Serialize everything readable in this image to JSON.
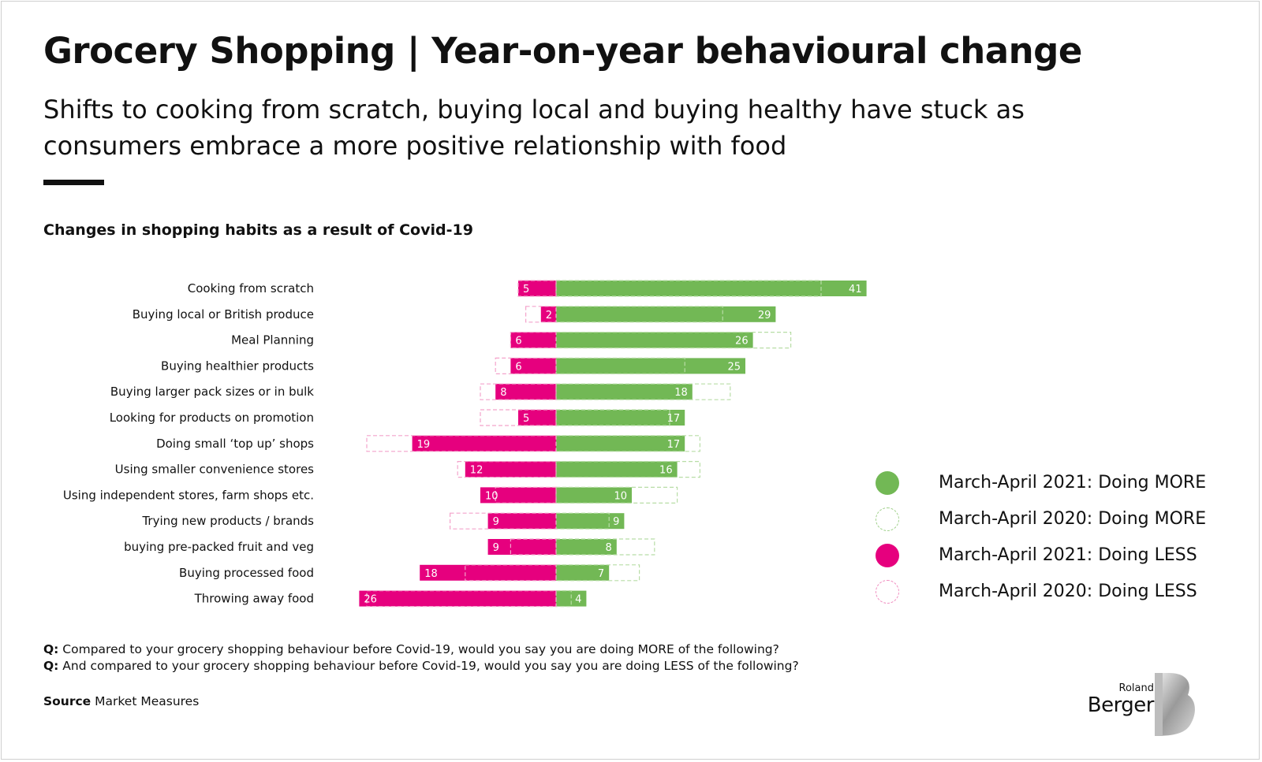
{
  "header": {
    "title": "Grocery Shopping | Year-on-year behavioural change",
    "subtitle": "Shifts to cooking from scratch, buying local and buying healthy have stuck as consumers embrace a more positive relationship with food"
  },
  "chart_data": {
    "type": "bar",
    "orientation": "horizontal-diverging",
    "title": "Changes in shopping habits as a result of Covid-19",
    "categories": [
      "Cooking from scratch",
      "Buying local or British produce",
      "Meal Planning",
      "Buying healthier products",
      "Buying larger pack sizes or in bulk",
      "Looking for products on promotion",
      "Doing small ‘top up’ shops",
      "Using smaller convenience stores",
      "Using independent stores, farm shops etc.",
      "Trying new products / brands",
      "buying pre-packed fruit and veg",
      "Buying processed food",
      "Throwing away food"
    ],
    "series": [
      {
        "name": "March-April 2021: Doing MORE",
        "color": "#72b855",
        "style": "filled",
        "values": [
          41,
          29,
          26,
          25,
          18,
          17,
          17,
          16,
          10,
          9,
          8,
          7,
          4
        ]
      },
      {
        "name": "March-April 2020: Doing MORE",
        "color": "#72b855",
        "style": "dashed-outline",
        "values": [
          35,
          22,
          31,
          17,
          23,
          15,
          19,
          19,
          16,
          7,
          13,
          11,
          2
        ]
      },
      {
        "name": "March-April 2021: Doing LESS",
        "color": "#e6007e",
        "style": "filled",
        "values": [
          5,
          2,
          6,
          6,
          8,
          5,
          19,
          12,
          10,
          9,
          9,
          18,
          26
        ]
      },
      {
        "name": "March-April 2020: Doing LESS",
        "color": "#e6007e",
        "style": "dashed-outline",
        "values": [
          5,
          4,
          6,
          8,
          10,
          10,
          25,
          13,
          8,
          14,
          6,
          12,
          25
        ]
      }
    ],
    "legend_position": "right",
    "grid": false
  },
  "legend": [
    {
      "label": "March-April 2021: Doing MORE",
      "color": "#72b855",
      "style": "filled"
    },
    {
      "label": "March-April 2020: Doing MORE",
      "color": "#72b855",
      "style": "dashed"
    },
    {
      "label": "March-April 2021: Doing LESS",
      "color": "#e6007e",
      "style": "filled"
    },
    {
      "label": "March-April 2020: Doing LESS",
      "color": "#e6007e",
      "style": "dashed"
    }
  ],
  "questions": [
    {
      "prefix": "Q:",
      "text": " Compared to your grocery shopping behaviour before Covid-19, would you say you are doing MORE of the following?"
    },
    {
      "prefix": "Q:",
      "text": " And compared to your grocery shopping behaviour before Covid-19, would you say you are doing LESS of the following?"
    }
  ],
  "source": {
    "prefix": "Source",
    "text": " Market Measures"
  },
  "logo": {
    "line1": "Roland",
    "line2": "Berger"
  },
  "colors": {
    "more": "#72b855",
    "less": "#e6007e",
    "text": "#111111"
  }
}
